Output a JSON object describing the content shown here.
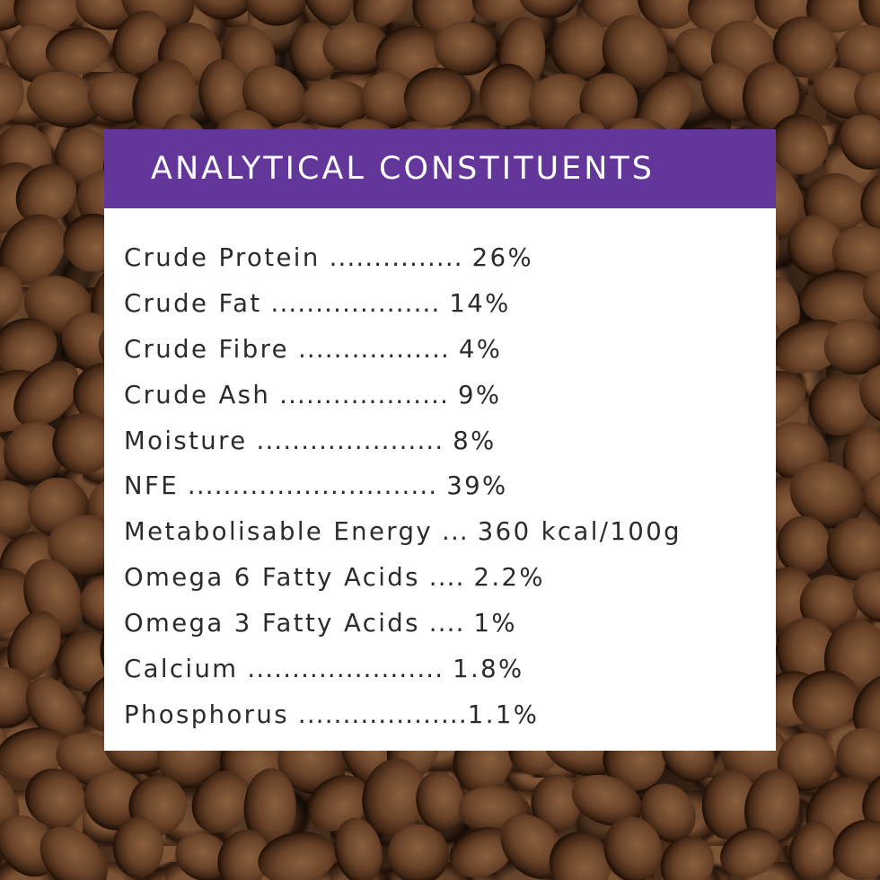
{
  "colors": {
    "header_bg": "#63379a",
    "header_text": "#ffffff",
    "panel_bg": "#ffffff",
    "body_text": "#2b2b2b",
    "background": "#4a2e1c"
  },
  "background": {
    "description_icon": "dog-kibble-background"
  },
  "panel": {
    "title": "ANALYTICAL CONSTITUENTS",
    "rows": [
      {
        "label": "Crude Protein",
        "dots": " ............... ",
        "value": "26%"
      },
      {
        "label": "Crude Fat",
        "dots": " ................... ",
        "value": "14%"
      },
      {
        "label": "Crude Fibre",
        "dots": " ................. ",
        "value": "4%"
      },
      {
        "label": "Crude Ash",
        "dots": " ................... ",
        "value": "9%"
      },
      {
        "label": "Moisture",
        "dots": " ..................... ",
        "value": "8%"
      },
      {
        "label": "NFE",
        "dots": " ............................ ",
        "value": "39%"
      },
      {
        "label": "Metabolisable Energy",
        "dots": " ... ",
        "value": "360 kcal/100g"
      },
      {
        "label": "Omega 6 Fatty Acids",
        "dots": " .... ",
        "value": "2.2%"
      },
      {
        "label": "Omega 3 Fatty Acids",
        "dots": " .... ",
        "value": "1%"
      },
      {
        "label": "Calcium",
        "dots": " ...................... ",
        "value": "1.8%"
      },
      {
        "label": "Phosphorus",
        "dots": " ...................",
        "value": "1.1%"
      }
    ]
  }
}
